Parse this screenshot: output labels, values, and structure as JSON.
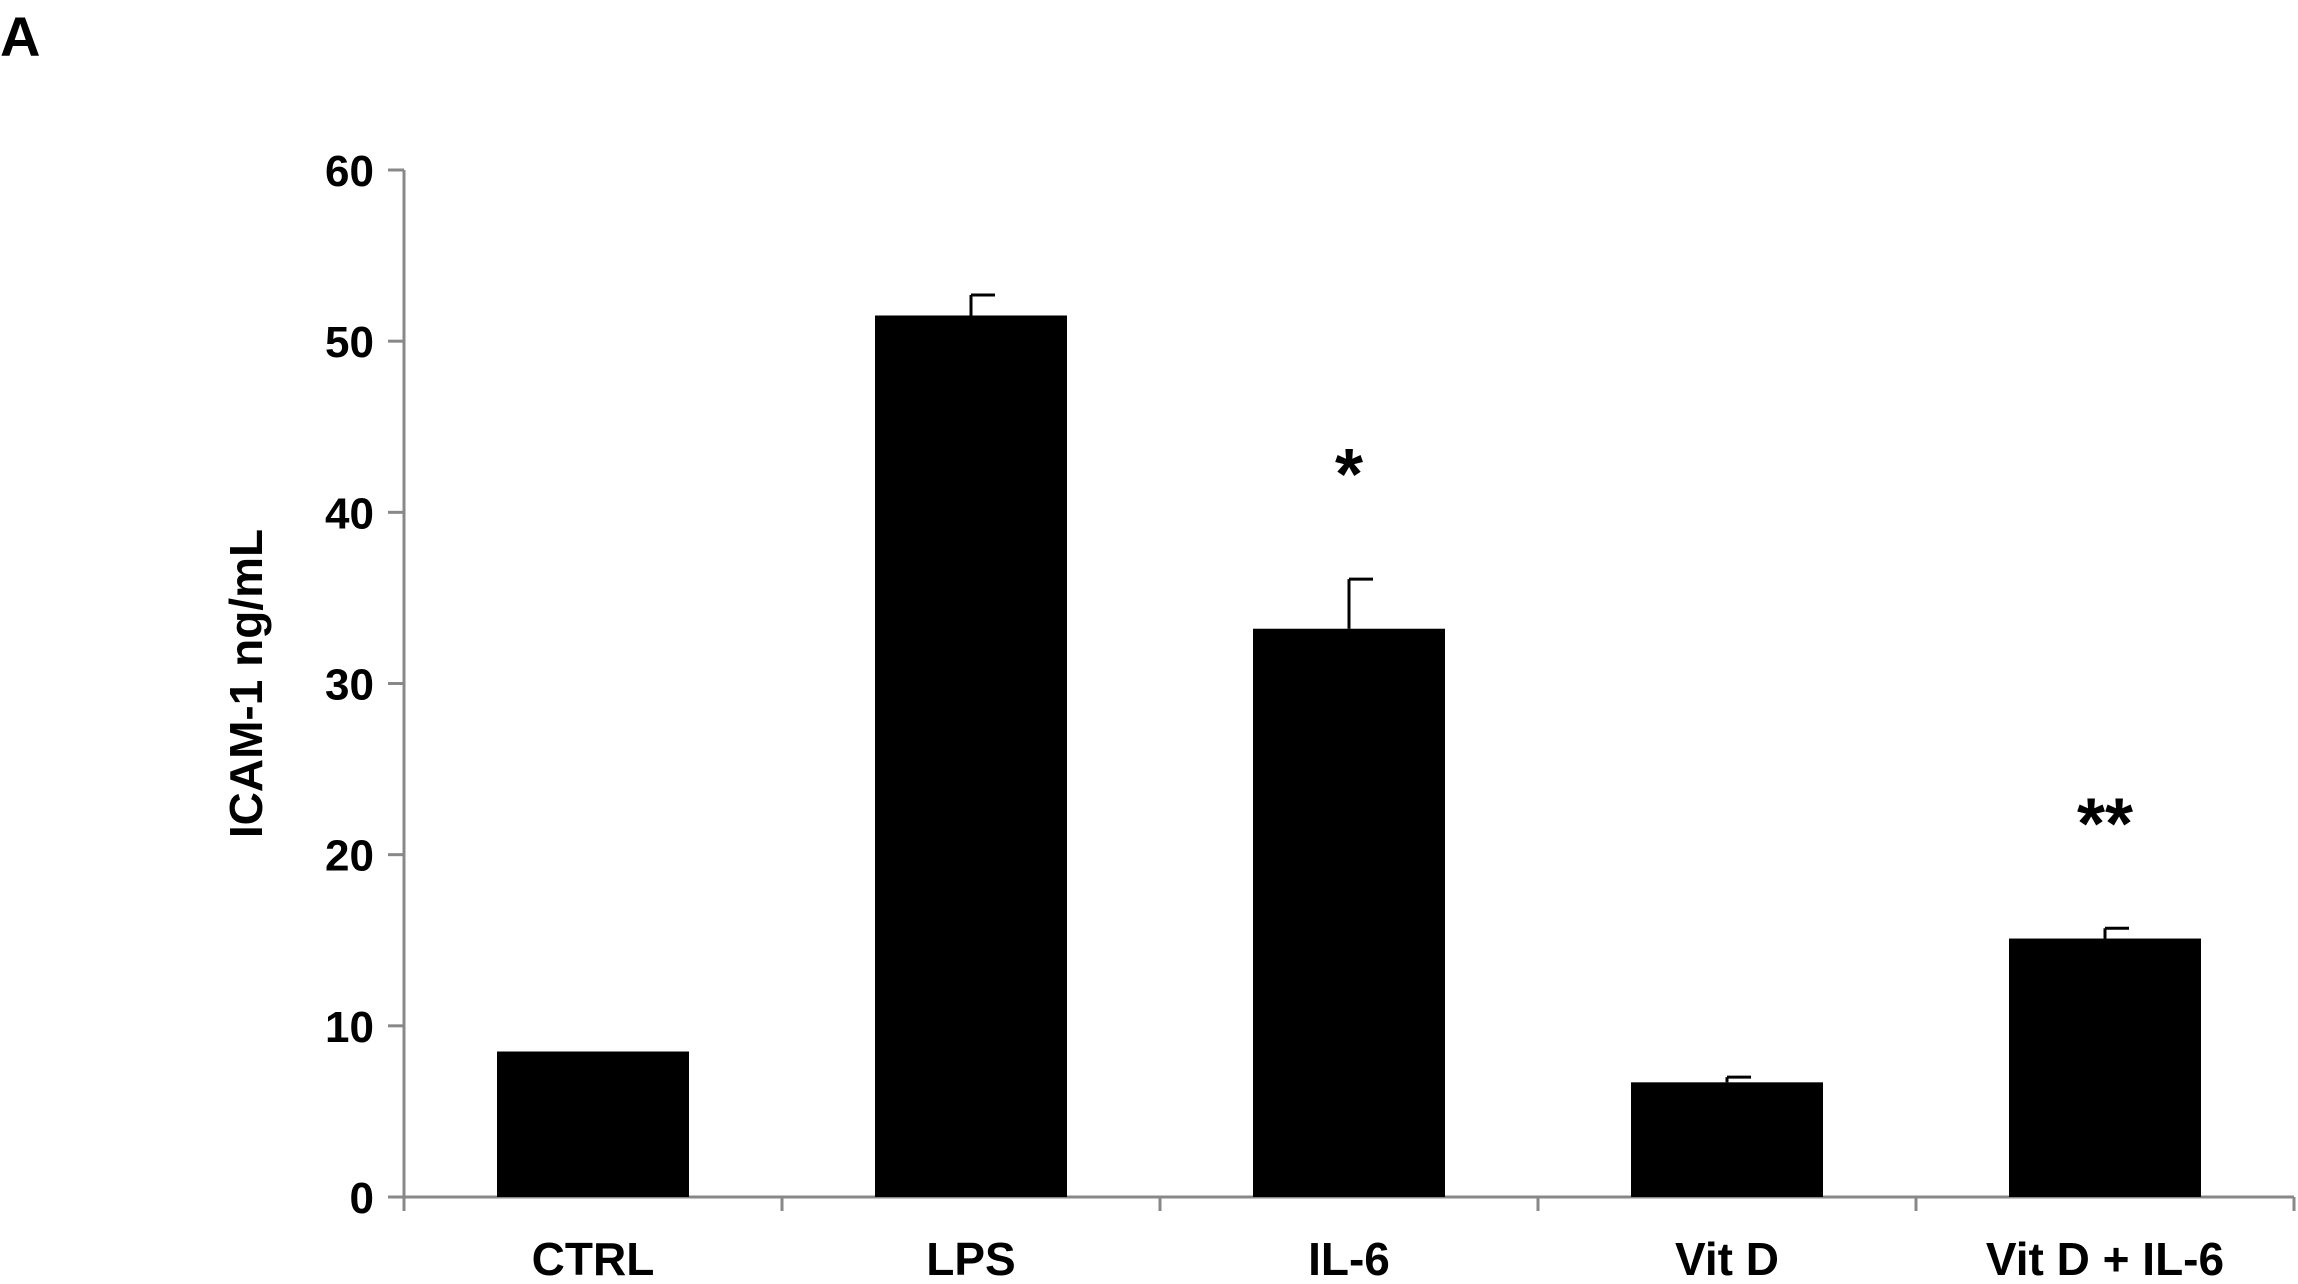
{
  "panel_label": "A",
  "chart_data": {
    "type": "bar",
    "title": "",
    "xlabel": "",
    "ylabel": "ICAM-1 ng/mL",
    "ylim": [
      0,
      60
    ],
    "yticks": [
      0,
      10,
      20,
      30,
      40,
      50,
      60
    ],
    "ytick_labels": [
      "0",
      "10",
      "20",
      "30",
      "40",
      "50",
      "60"
    ],
    "categories": [
      "CTRL",
      "LPS",
      "IL-6",
      "Vit D",
      "Vit D + IL-6"
    ],
    "values": [
      8.5,
      51.5,
      33.2,
      6.7,
      15.1
    ],
    "error": [
      0,
      1.2,
      2.9,
      0.3,
      0.6
    ],
    "annotations": [
      "",
      "",
      "*",
      "",
      "**"
    ],
    "bar_color": "#000000",
    "axis_color": "#888888",
    "grid": false,
    "legend": "none"
  }
}
